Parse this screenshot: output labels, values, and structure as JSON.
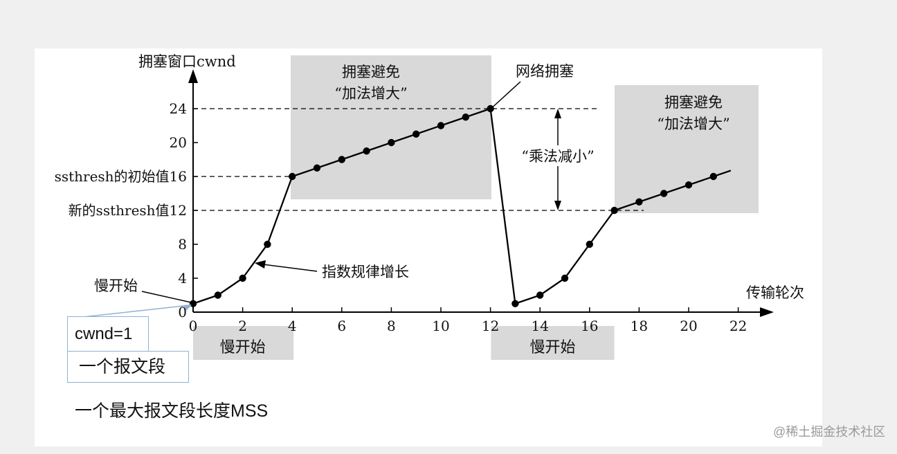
{
  "chart_data": {
    "type": "line",
    "y_axis_label": "拥塞窗口cwnd",
    "x_axis_label": "传输轮次",
    "x_ticks": [
      "0",
      "2",
      "4",
      "6",
      "8",
      "10",
      "12",
      "14",
      "16",
      "18",
      "20",
      "22"
    ],
    "y_ticks": [
      "0",
      "4",
      "8",
      "12",
      "16",
      "20",
      "24"
    ],
    "xlim": [
      0,
      22
    ],
    "ylim": [
      0,
      24
    ],
    "series": [
      {
        "points": [
          [
            0,
            1
          ],
          [
            1,
            2
          ],
          [
            2,
            4
          ],
          [
            3,
            8
          ],
          [
            4,
            16
          ],
          [
            5,
            17
          ],
          [
            6,
            18
          ],
          [
            7,
            19
          ],
          [
            8,
            20
          ],
          [
            9,
            21
          ],
          [
            10,
            22
          ],
          [
            11,
            23
          ],
          [
            12,
            24
          ]
        ]
      },
      {
        "points": [
          [
            13,
            1
          ],
          [
            14,
            2
          ],
          [
            15,
            4
          ],
          [
            16,
            8
          ],
          [
            17,
            12
          ],
          [
            18,
            13
          ],
          [
            19,
            14
          ],
          [
            20,
            15
          ],
          [
            21,
            16
          ]
        ]
      }
    ],
    "thresholds": [
      {
        "value": 24,
        "label": "24"
      },
      {
        "value": 16,
        "label": "ssthresh的初始值16"
      },
      {
        "value": 12,
        "label": "新的ssthresh值12"
      }
    ],
    "regions": [
      {
        "line1": "拥塞避免",
        "line2": "“加法增大”",
        "x_from": 4,
        "x_to": 12
      },
      {
        "line1": "拥塞避免",
        "line2": "“加法增大”",
        "x_from": 17,
        "x_to": 22
      }
    ],
    "slow_start_bands": [
      {
        "label": "慢开始",
        "x_from": 0,
        "x_to": 4
      },
      {
        "label": "慢开始",
        "x_from": 13,
        "x_to": 17
      }
    ],
    "annotations": {
      "congestion": "网络拥塞",
      "multiplicative": "“乘法减小”",
      "exponential": "指数规律增长",
      "slow_start": "慢开始"
    }
  },
  "notes": {
    "cwnd_box": "cwnd=1",
    "segment_box": "一个报文段",
    "mss_note": "一个最大报文段长度MSS"
  },
  "watermark": "@稀土掘金技术社区",
  "colors": {
    "page_background": "#f0f0f1",
    "panel_background": "#ffffff",
    "shaded_region": "#d9d9d9",
    "line": "#000000",
    "note_border": "#8fb1d2",
    "watermark": "#9a9a9a"
  }
}
